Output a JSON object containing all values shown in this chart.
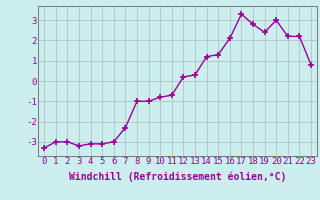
{
  "x": [
    0,
    1,
    2,
    3,
    4,
    5,
    6,
    7,
    8,
    9,
    10,
    11,
    12,
    13,
    14,
    15,
    16,
    17,
    18,
    19,
    20,
    21,
    22,
    23
  ],
  "y": [
    -3.3,
    -3.0,
    -3.0,
    -3.2,
    -3.1,
    -3.1,
    -3.0,
    -2.3,
    -1.0,
    -1.0,
    -0.8,
    -0.7,
    0.2,
    0.3,
    1.2,
    1.3,
    2.1,
    3.3,
    2.8,
    2.4,
    3.0,
    2.2,
    2.2,
    0.8
  ],
  "line_color": "#990099",
  "marker": "+",
  "marker_size": 4,
  "linewidth": 1.0,
  "bg_color": "#cceeee",
  "grid_color": "#aabbbb",
  "xlabel": "Windchill (Refroidissement éolien,°C)",
  "xlabel_fontsize": 7,
  "yticks": [
    -3,
    -2,
    -1,
    0,
    1,
    2,
    3
  ],
  "xticks": [
    0,
    1,
    2,
    3,
    4,
    5,
    6,
    7,
    8,
    9,
    10,
    11,
    12,
    13,
    14,
    15,
    16,
    17,
    18,
    19,
    20,
    21,
    22,
    23
  ],
  "ylim": [
    -3.7,
    3.7
  ],
  "xlim": [
    -0.5,
    23.5
  ],
  "tick_color": "#990099",
  "tick_fontsize": 6.5,
  "spine_color": "#666666"
}
